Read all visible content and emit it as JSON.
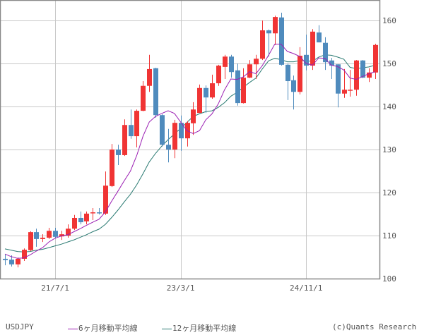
{
  "chart_data": {
    "type": "candlestick",
    "title": "USDJPY",
    "symbol": "USDJPY",
    "frequency": "monthly",
    "ylim": [
      100,
      165
    ],
    "y_ticks": [
      100,
      110,
      120,
      130,
      140,
      150,
      160
    ],
    "x_ticks": [
      {
        "label": "21/7/1",
        "index": 8
      },
      {
        "label": "23/3/1",
        "index": 28
      },
      {
        "label": "24/11/1",
        "index": 48
      }
    ],
    "grid": true,
    "colors": {
      "up": "#f03434",
      "down": "#4f8bbd",
      "ma6": "#9b1fb3",
      "ma12": "#2a7a72",
      "grid": "#c8c8c8",
      "border": "#888888"
    },
    "legend": [
      {
        "name": "6ヶ月移動平均線",
        "color": "#9b1fb3"
      },
      {
        "name": "12ヶ月移動平均線",
        "color": "#2a7a72"
      }
    ],
    "ohlc": [
      [
        104.6,
        105.6,
        103.1,
        104.3
      ],
      [
        104.4,
        105.4,
        102.8,
        103.3
      ],
      [
        103.3,
        104.9,
        102.6,
        104.6
      ],
      [
        104.6,
        107.0,
        104.1,
        106.7
      ],
      [
        106.6,
        111.0,
        106.4,
        110.8
      ],
      [
        110.8,
        111.6,
        107.4,
        109.2
      ],
      [
        109.2,
        110.3,
        108.5,
        109.5
      ],
      [
        109.5,
        111.8,
        109.2,
        111.1
      ],
      [
        111.1,
        111.8,
        109.3,
        109.7
      ],
      [
        109.8,
        111.1,
        109.0,
        110.3
      ],
      [
        110.0,
        112.6,
        109.5,
        111.6
      ],
      [
        111.6,
        114.8,
        111.3,
        114.1
      ],
      [
        114.1,
        115.6,
        112.6,
        113.1
      ],
      [
        113.3,
        115.6,
        112.6,
        115.1
      ],
      [
        115.2,
        116.4,
        113.6,
        115.4
      ],
      [
        115.4,
        116.4,
        114.9,
        115.2
      ],
      [
        115.1,
        124.9,
        114.8,
        121.6
      ],
      [
        121.5,
        131.3,
        121.3,
        130.0
      ],
      [
        130.0,
        131.1,
        126.4,
        128.7
      ],
      [
        128.7,
        137.0,
        128.5,
        135.7
      ],
      [
        135.7,
        139.3,
        132.5,
        133.1
      ],
      [
        133.1,
        139.3,
        130.5,
        139.0
      ],
      [
        139.0,
        145.9,
        138.9,
        144.8
      ],
      [
        144.8,
        152.0,
        143.4,
        148.7
      ],
      [
        148.9,
        149.0,
        137.4,
        138.0
      ],
      [
        138.0,
        138.2,
        130.7,
        131.1
      ],
      [
        131.1,
        134.8,
        127.0,
        130.0
      ],
      [
        130.0,
        136.9,
        128.0,
        136.2
      ],
      [
        136.2,
        137.9,
        129.7,
        132.6
      ],
      [
        132.6,
        136.6,
        130.7,
        136.2
      ],
      [
        136.1,
        141.0,
        133.4,
        139.3
      ],
      [
        138.5,
        145.1,
        138.5,
        144.3
      ],
      [
        144.3,
        144.9,
        138.5,
        142.1
      ],
      [
        142.1,
        147.4,
        141.8,
        145.4
      ],
      [
        145.4,
        149.7,
        144.8,
        149.5
      ],
      [
        149.2,
        152.0,
        146.4,
        151.6
      ],
      [
        151.6,
        152.0,
        146.7,
        148.0
      ],
      [
        148.4,
        150.0,
        140.2,
        140.8
      ],
      [
        140.8,
        148.9,
        140.7,
        146.7
      ],
      [
        146.7,
        150.8,
        146.6,
        149.8
      ],
      [
        149.8,
        152.0,
        146.4,
        151.1
      ],
      [
        151.1,
        160.0,
        150.8,
        157.7
      ],
      [
        157.7,
        157.9,
        151.6,
        157.0
      ],
      [
        157.0,
        161.1,
        154.3,
        160.8
      ],
      [
        160.7,
        161.8,
        149.5,
        149.7
      ],
      [
        149.7,
        150.0,
        141.5,
        145.9
      ],
      [
        146.1,
        147.2,
        139.3,
        143.4
      ],
      [
        143.4,
        153.8,
        142.8,
        151.8
      ],
      [
        152.0,
        156.7,
        148.4,
        149.5
      ],
      [
        149.5,
        158.0,
        148.5,
        157.4
      ],
      [
        157.2,
        158.9,
        154.9,
        154.9
      ],
      [
        154.8,
        156.1,
        148.5,
        150.3
      ],
      [
        150.7,
        151.3,
        146.4,
        149.5
      ],
      [
        149.8,
        149.8,
        139.8,
        143.0
      ],
      [
        143.0,
        148.7,
        142.0,
        143.9
      ],
      [
        143.8,
        148.5,
        142.3,
        143.9
      ],
      [
        143.9,
        150.8,
        142.5,
        150.7
      ],
      [
        150.7,
        150.8,
        146.6,
        146.7
      ],
      [
        146.7,
        148.9,
        145.7,
        147.9
      ],
      [
        147.9,
        154.6,
        146.4,
        154.3
      ]
    ],
    "ma6": [
      105.7,
      105.1,
      104.7,
      104.8,
      105.5,
      106.4,
      107.2,
      108.5,
      109.4,
      109.9,
      110.2,
      110.9,
      111.6,
      112.4,
      113.1,
      113.8,
      115.5,
      118.0,
      120.3,
      122.7,
      125.0,
      128.6,
      133.1,
      136.4,
      137.7,
      138.4,
      139.0,
      138.4,
      136.4,
      134.4,
      133.7,
      134.4,
      136.9,
      138.3,
      140.6,
      143.9,
      146.4,
      146.3,
      146.9,
      148.1,
      147.6,
      149.5,
      151.9,
      154.5,
      154.5,
      152.8,
      152.3,
      151.6,
      150.0,
      149.6,
      151.3,
      151.2,
      149.6,
      149.3,
      148.5,
      146.6,
      146.3,
      147.0,
      147.6,
      148.1
    ],
    "ma12": [
      106.9,
      106.6,
      106.3,
      106.2,
      106.3,
      106.6,
      106.8,
      107.2,
      107.6,
      108.0,
      108.5,
      109.0,
      109.6,
      110.2,
      110.9,
      111.5,
      112.6,
      114.2,
      115.9,
      117.8,
      119.6,
      121.8,
      124.4,
      127.1,
      129.1,
      130.8,
      132.3,
      133.6,
      134.9,
      136.3,
      137.7,
      138.3,
      138.8,
      139.0,
      139.8,
      140.9,
      142.4,
      143.3,
      144.5,
      145.6,
      146.6,
      148.7,
      150.6,
      151.2,
      150.9,
      150.4,
      150.4,
      150.7,
      150.6,
      150.5,
      151.5,
      152.0,
      151.9,
      151.5,
      151.0,
      149.1,
      148.8,
      149.0,
      149.2,
      149.6
    ]
  },
  "footer": {
    "symbol": "USDJPY",
    "legend_ma6": "6ヶ月移動平均線",
    "legend_ma12": "12ヶ月移動平均線",
    "credit": "(c)Quants Research"
  }
}
